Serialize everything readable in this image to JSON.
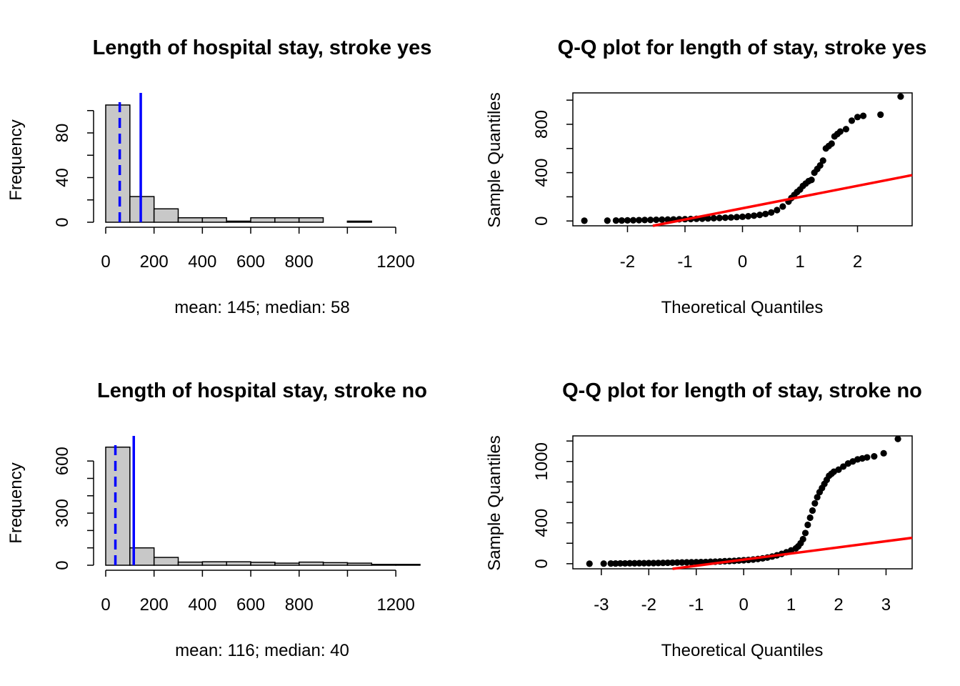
{
  "colors": {
    "reference_lines": "#0000ff",
    "qq_line": "#ff0000",
    "points": "#000000",
    "bars": "#c8c8c8"
  },
  "chart_data": [
    {
      "type": "histogram",
      "title": "Length of hospital stay, stroke yes",
      "xlabel": "mean: 145; median: 58",
      "ylabel": "Frequency",
      "bin_edges": [
        0,
        100,
        200,
        300,
        400,
        500,
        600,
        700,
        800,
        900,
        1000,
        1100
      ],
      "counts": [
        105,
        23,
        12,
        4,
        4,
        1,
        4,
        4,
        4,
        0,
        1
      ],
      "xlim": [
        0,
        1200
      ],
      "ylim": [
        0,
        112
      ],
      "xticks": [
        0,
        200,
        400,
        600,
        800,
        1200
      ],
      "yticks": [
        0,
        40,
        80
      ],
      "yminor": [
        20,
        60,
        100
      ],
      "mean": 145,
      "median": 58,
      "mean_line": "solid",
      "median_line": "dashed"
    },
    {
      "type": "scatter",
      "title": "Q-Q plot for length of stay, stroke yes",
      "xlabel": "Theoretical Quantiles",
      "ylabel": "Sample Quantiles",
      "xlim": [
        -2.95,
        2.95
      ],
      "ylim": [
        -40,
        1060
      ],
      "xticks": [
        -2,
        -1,
        0,
        1,
        2
      ],
      "yticks": [
        0,
        400,
        800
      ],
      "yminor": [
        200,
        600,
        1000
      ],
      "reference_line": {
        "intercept": 105,
        "slope": 93
      },
      "points": [
        [
          -2.75,
          2
        ],
        [
          -2.35,
          3
        ],
        [
          -2.2,
          4
        ],
        [
          -2.1,
          4
        ],
        [
          -2.0,
          5
        ],
        [
          -1.9,
          6
        ],
        [
          -1.8,
          7
        ],
        [
          -1.7,
          8
        ],
        [
          -1.6,
          9
        ],
        [
          -1.5,
          10
        ],
        [
          -1.4,
          11
        ],
        [
          -1.3,
          12
        ],
        [
          -1.2,
          13
        ],
        [
          -1.1,
          14
        ],
        [
          -1.0,
          15
        ],
        [
          -0.9,
          16
        ],
        [
          -0.8,
          18
        ],
        [
          -0.7,
          19
        ],
        [
          -0.6,
          21
        ],
        [
          -0.5,
          23
        ],
        [
          -0.4,
          25
        ],
        [
          -0.3,
          27
        ],
        [
          -0.2,
          29
        ],
        [
          -0.1,
          32
        ],
        [
          0.0,
          35
        ],
        [
          0.1,
          39
        ],
        [
          0.2,
          44
        ],
        [
          0.3,
          50
        ],
        [
          0.4,
          58
        ],
        [
          0.5,
          70
        ],
        [
          0.6,
          90
        ],
        [
          0.7,
          120
        ],
        [
          0.8,
          160
        ],
        [
          0.85,
          190
        ],
        [
          0.9,
          215
        ],
        [
          0.95,
          240
        ],
        [
          1.0,
          260
        ],
        [
          1.05,
          290
        ],
        [
          1.1,
          310
        ],
        [
          1.15,
          330
        ],
        [
          1.2,
          340
        ],
        [
          1.25,
          400
        ],
        [
          1.3,
          430
        ],
        [
          1.35,
          460
        ],
        [
          1.4,
          500
        ],
        [
          1.45,
          600
        ],
        [
          1.5,
          620
        ],
        [
          1.55,
          640
        ],
        [
          1.6,
          700
        ],
        [
          1.65,
          720
        ],
        [
          1.7,
          740
        ],
        [
          1.8,
          760
        ],
        [
          1.9,
          830
        ],
        [
          2.0,
          860
        ],
        [
          2.1,
          870
        ],
        [
          2.4,
          880
        ],
        [
          2.75,
          1030
        ]
      ]
    },
    {
      "type": "histogram",
      "title": "Length of hospital stay, stroke no",
      "xlabel": "mean: 116; median: 40",
      "ylabel": "Frequency",
      "bin_edges": [
        0,
        100,
        200,
        300,
        400,
        500,
        600,
        700,
        800,
        900,
        1000,
        1100,
        1200,
        1300
      ],
      "counts": [
        680,
        100,
        45,
        18,
        20,
        20,
        17,
        12,
        18,
        15,
        12,
        5,
        5
      ],
      "xlim": [
        0,
        1300
      ],
      "ylim": [
        0,
        720
      ],
      "xticks": [
        0,
        200,
        400,
        600,
        800,
        1200
      ],
      "yticks": [
        0,
        300,
        600
      ],
      "yminor": [
        100,
        200,
        400,
        500
      ],
      "mean": 116,
      "median": 40,
      "mean_line": "solid",
      "median_line": "dashed"
    },
    {
      "type": "scatter",
      "title": "Q-Q plot for length of stay, stroke no",
      "xlabel": "Theoretical Quantiles",
      "ylabel": "Sample Quantiles",
      "xlim": [
        -3.6,
        3.55
      ],
      "ylim": [
        -50,
        1250
      ],
      "xticks": [
        -3,
        -2,
        -1,
        0,
        1,
        2,
        3
      ],
      "yticks": [
        0,
        400,
        1000
      ],
      "yminor": [
        200,
        600,
        800,
        1200
      ],
      "reference_line": {
        "intercept": 40,
        "slope": 60
      },
      "points": [
        [
          -3.25,
          0
        ],
        [
          -2.95,
          1
        ],
        [
          -2.8,
          2
        ],
        [
          -2.7,
          2
        ],
        [
          -2.6,
          3
        ],
        [
          -2.5,
          3
        ],
        [
          -2.4,
          4
        ],
        [
          -2.3,
          4
        ],
        [
          -2.2,
          5
        ],
        [
          -2.1,
          5
        ],
        [
          -2.0,
          6
        ],
        [
          -1.9,
          6
        ],
        [
          -1.8,
          7
        ],
        [
          -1.7,
          8
        ],
        [
          -1.6,
          9
        ],
        [
          -1.5,
          10
        ],
        [
          -1.4,
          11
        ],
        [
          -1.3,
          12
        ],
        [
          -1.2,
          13
        ],
        [
          -1.1,
          14
        ],
        [
          -1.0,
          15
        ],
        [
          -0.9,
          16
        ],
        [
          -0.8,
          17
        ],
        [
          -0.7,
          19
        ],
        [
          -0.6,
          20
        ],
        [
          -0.5,
          22
        ],
        [
          -0.4,
          24
        ],
        [
          -0.3,
          26
        ],
        [
          -0.2,
          28
        ],
        [
          -0.1,
          31
        ],
        [
          0.0,
          34
        ],
        [
          0.1,
          37
        ],
        [
          0.2,
          41
        ],
        [
          0.3,
          46
        ],
        [
          0.4,
          52
        ],
        [
          0.5,
          60
        ],
        [
          0.6,
          70
        ],
        [
          0.7,
          82
        ],
        [
          0.8,
          96
        ],
        [
          0.9,
          112
        ],
        [
          1.0,
          130
        ],
        [
          1.1,
          150
        ],
        [
          1.15,
          170
        ],
        [
          1.2,
          200
        ],
        [
          1.25,
          240
        ],
        [
          1.3,
          300
        ],
        [
          1.35,
          380
        ],
        [
          1.4,
          450
        ],
        [
          1.45,
          520
        ],
        [
          1.5,
          590
        ],
        [
          1.55,
          650
        ],
        [
          1.6,
          700
        ],
        [
          1.65,
          740
        ],
        [
          1.7,
          780
        ],
        [
          1.75,
          820
        ],
        [
          1.8,
          860
        ],
        [
          1.85,
          880
        ],
        [
          1.9,
          900
        ],
        [
          2.0,
          920
        ],
        [
          2.1,
          950
        ],
        [
          2.2,
          980
        ],
        [
          2.3,
          1000
        ],
        [
          2.4,
          1020
        ],
        [
          2.5,
          1030
        ],
        [
          2.6,
          1040
        ],
        [
          2.75,
          1050
        ],
        [
          2.95,
          1080
        ],
        [
          3.25,
          1220
        ]
      ]
    }
  ]
}
